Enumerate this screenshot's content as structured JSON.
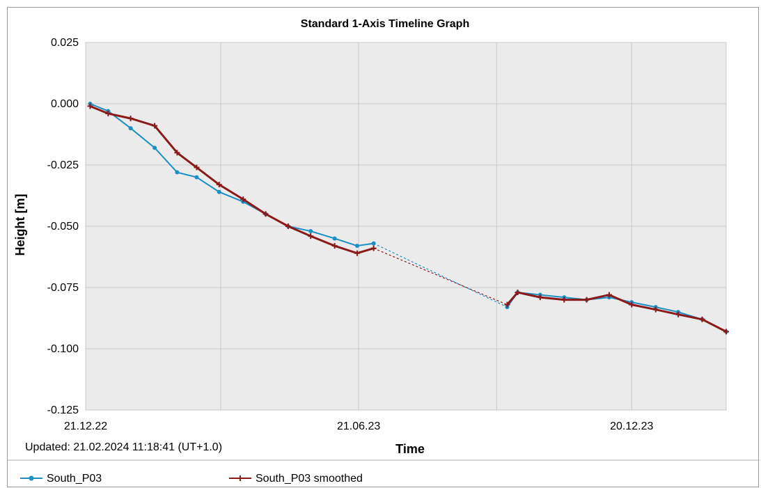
{
  "chart_data": {
    "type": "line",
    "title": "Standard 1-Axis Timeline Graph",
    "xlabel": "Time",
    "ylabel": "Height [m]",
    "x_tick_labels": [
      "21.12.22",
      "21.06.23",
      "20.12.23"
    ],
    "x_range": [
      "2022-12-21",
      "2024-02-21"
    ],
    "y_ticks": [
      "0.025",
      "0.000",
      "-0.025",
      "-0.050",
      "-0.075",
      "-0.100",
      "-0.125"
    ],
    "ylim": [
      -0.125,
      0.025
    ],
    "grid": true,
    "legend_position": "bottom",
    "updated": "Updated: 21.02.2024 11:18:41 (UT+1.0)",
    "series": [
      {
        "name": "South_P03",
        "color": "#1a8fc4",
        "marker": "dot",
        "x": [
          "2022-12-24",
          "2023-01-05",
          "2023-01-20",
          "2023-02-05",
          "2023-02-20",
          "2023-03-05",
          "2023-03-20",
          "2023-04-05",
          "2023-04-20",
          "2023-05-05",
          "2023-05-20",
          "2023-06-05",
          "2023-06-20",
          "2023-07-01",
          "2023-09-28",
          "2023-10-05",
          "2023-10-20",
          "2023-11-05",
          "2023-11-20",
          "2023-12-05",
          "2023-12-20",
          "2024-01-05",
          "2024-01-20",
          "2024-02-05",
          "2024-02-21"
        ],
        "values": [
          0.0,
          -0.003,
          -0.01,
          -0.018,
          -0.028,
          -0.03,
          -0.036,
          -0.04,
          -0.045,
          -0.05,
          -0.052,
          -0.055,
          -0.058,
          -0.057,
          -0.083,
          -0.077,
          -0.078,
          -0.079,
          -0.08,
          -0.079,
          -0.081,
          -0.083,
          -0.085,
          -0.088,
          -0.093
        ]
      },
      {
        "name": "South_P03 smoothed",
        "color": "#8b1a1a",
        "marker": "cross",
        "x": [
          "2022-12-24",
          "2023-01-05",
          "2023-01-20",
          "2023-02-05",
          "2023-02-20",
          "2023-03-05",
          "2023-03-20",
          "2023-04-05",
          "2023-04-20",
          "2023-05-05",
          "2023-05-20",
          "2023-06-05",
          "2023-06-20",
          "2023-07-01",
          "2023-09-28",
          "2023-10-05",
          "2023-10-20",
          "2023-11-05",
          "2023-11-20",
          "2023-12-05",
          "2023-12-20",
          "2024-01-05",
          "2024-01-20",
          "2024-02-05",
          "2024-02-21"
        ],
        "values": [
          -0.001,
          -0.004,
          -0.006,
          -0.009,
          -0.02,
          -0.026,
          -0.033,
          -0.039,
          -0.045,
          -0.05,
          -0.054,
          -0.058,
          -0.061,
          -0.059,
          -0.082,
          -0.077,
          -0.079,
          -0.08,
          -0.08,
          -0.078,
          -0.082,
          -0.084,
          -0.086,
          -0.088,
          -0.093
        ]
      }
    ]
  }
}
